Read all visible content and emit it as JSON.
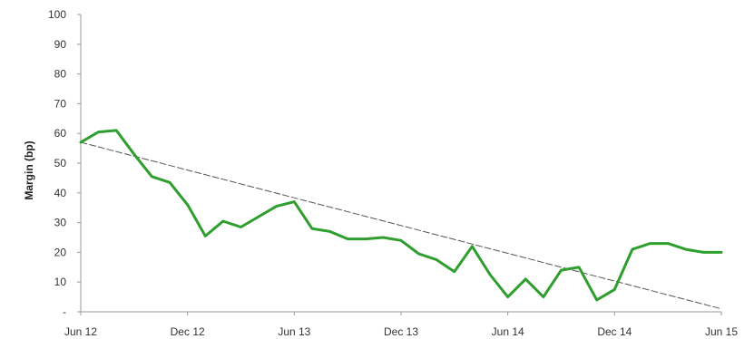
{
  "chart_data": {
    "type": "line",
    "ylabel": "Margin (bp)",
    "xlabel": "",
    "title": "",
    "ylim": [
      0,
      100
    ],
    "y_ticks": [
      "-",
      "10",
      "20",
      "30",
      "40",
      "50",
      "60",
      "70",
      "80",
      "90",
      "100"
    ],
    "y_tick_values": [
      0,
      10,
      20,
      30,
      40,
      50,
      60,
      70,
      80,
      90,
      100
    ],
    "x_ticks": [
      "Jun 12",
      "Dec 12",
      "Jun 13",
      "Dec 13",
      "Jun 14",
      "Dec 14",
      "Jun 15"
    ],
    "x_range_months": [
      0,
      36
    ],
    "grid": false,
    "series": [
      {
        "color": "#2e9e2e",
        "style": "solid",
        "x": [
          0,
          1,
          2,
          3,
          4,
          5,
          6,
          7,
          8,
          9,
          10,
          11,
          12,
          13,
          14,
          15,
          16,
          17,
          18,
          19,
          20,
          21,
          22,
          23,
          24,
          25,
          26,
          27,
          28,
          29,
          30,
          31,
          32,
          33,
          34,
          35,
          36
        ],
        "values": [
          57,
          60.5,
          61,
          53,
          45.5,
          43.5,
          36,
          25.5,
          30.5,
          28.5,
          32,
          35.5,
          37,
          28,
          27,
          24.5,
          24.5,
          25,
          24,
          19.5,
          17.5,
          13.5,
          22,
          12.5,
          5,
          11,
          5,
          14,
          15,
          4,
          7.5,
          21,
          23,
          23,
          21,
          20,
          20
        ]
      },
      {
        "color": "#555555",
        "style": "dashed",
        "x": [
          0,
          36
        ],
        "values": [
          57,
          1
        ]
      }
    ]
  }
}
